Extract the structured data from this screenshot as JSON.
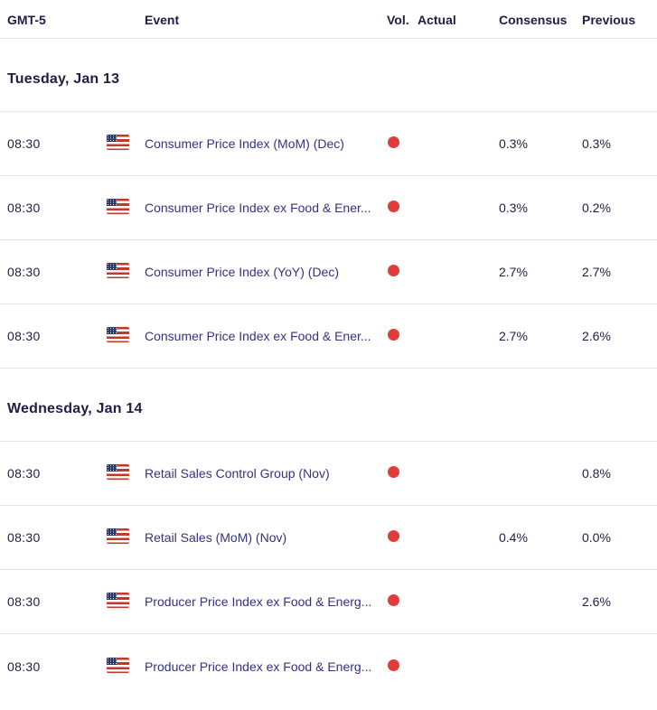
{
  "header": {
    "time": "GMT-5",
    "event": "Event",
    "vol": "Vol.",
    "actual": "Actual",
    "consensus": "Consensus",
    "previous": "Previous"
  },
  "colors": {
    "volatility_high": "#e23b3b",
    "event_link": "#333380",
    "text": "#1e1e45",
    "divider": "#e4e4e4",
    "background": "#ffffff"
  },
  "icons": {
    "flag": "us-flag-icon",
    "volatility": "high-volatility-dot-icon"
  },
  "sections": [
    {
      "title": "Tuesday, Jan 13",
      "rows": [
        {
          "time": "08:30",
          "country": "US",
          "event": "Consumer Price Index (MoM) (Dec)",
          "volatility": "high",
          "actual": "",
          "consensus": "0.3%",
          "previous": "0.3%"
        },
        {
          "time": "08:30",
          "country": "US",
          "event": "Consumer Price Index ex Food & Ener...",
          "volatility": "high",
          "actual": "",
          "consensus": "0.3%",
          "previous": "0.2%"
        },
        {
          "time": "08:30",
          "country": "US",
          "event": "Consumer Price Index (YoY) (Dec)",
          "volatility": "high",
          "actual": "",
          "consensus": "2.7%",
          "previous": "2.7%"
        },
        {
          "time": "08:30",
          "country": "US",
          "event": "Consumer Price Index ex Food & Ener...",
          "volatility": "high",
          "actual": "",
          "consensus": "2.7%",
          "previous": "2.6%"
        }
      ]
    },
    {
      "title": "Wednesday, Jan 14",
      "rows": [
        {
          "time": "08:30",
          "country": "US",
          "event": "Retail Sales Control Group (Nov)",
          "volatility": "high",
          "actual": "",
          "consensus": "",
          "previous": "0.8%"
        },
        {
          "time": "08:30",
          "country": "US",
          "event": "Retail Sales (MoM) (Nov)",
          "volatility": "high",
          "actual": "",
          "consensus": "0.4%",
          "previous": "0.0%"
        },
        {
          "time": "08:30",
          "country": "US",
          "event": "Producer Price Index ex Food & Energ...",
          "volatility": "high",
          "actual": "",
          "consensus": "",
          "previous": "2.6%"
        },
        {
          "time": "08:30",
          "country": "US",
          "event": "Producer Price Index ex Food & Energ...",
          "volatility": "high",
          "actual": "",
          "consensus": "",
          "previous": ""
        }
      ]
    }
  ]
}
